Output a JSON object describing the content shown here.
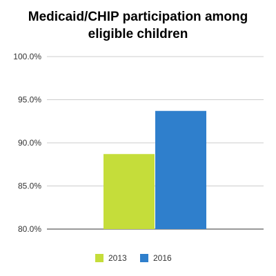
{
  "chart_data": {
    "type": "bar",
    "title_lines": [
      "Medicaid/CHIP participation among",
      "eligible children"
    ],
    "categories": [
      ""
    ],
    "series": [
      {
        "name": "2013",
        "values": [
          88.7
        ],
        "color": "#c5dd3a"
      },
      {
        "name": "2016",
        "values": [
          93.7
        ],
        "color": "#2f7fcc"
      }
    ],
    "ylim": [
      80,
      100
    ],
    "yticks": [
      80,
      85,
      90,
      95,
      100
    ],
    "ytick_labels": [
      "80.0%",
      "85.0%",
      "90.0%",
      "95.0%",
      "100.0%"
    ],
    "xlabel": "",
    "ylabel": "",
    "grid": true,
    "legend_position": "bottom",
    "colors": {
      "grid": "#cccccc",
      "text": "#333333"
    }
  }
}
